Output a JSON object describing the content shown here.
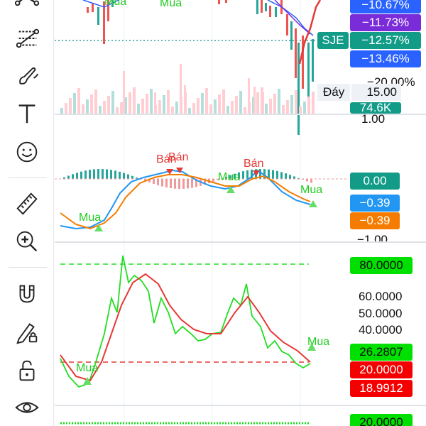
{
  "toolbar": {
    "tools": [
      {
        "name": "trend-line-tool-icon",
        "top": -6
      },
      {
        "name": "pitchfork-tool-icon",
        "top": 34
      },
      {
        "name": "brush-tool-icon",
        "top": 88
      },
      {
        "name": "text-tool-icon",
        "top": 140
      },
      {
        "name": "emoji-tool-icon",
        "top": 192
      },
      {
        "name": "ruler-tool-icon",
        "top": 264
      },
      {
        "name": "zoom-in-tool-icon",
        "top": 318
      },
      {
        "name": "magnet-tool-icon",
        "top": 392
      },
      {
        "name": "lock-drawing-tool-icon",
        "top": 446
      },
      {
        "name": "unlock-icon",
        "top": 500
      },
      {
        "name": "visibility-eye-icon",
        "top": 552
      }
    ]
  },
  "price_pane": {
    "tags": {
      "ma1": "−10.67%",
      "ma2": "−11.73%",
      "current": "−12.57%",
      "ma3": "−13.46%"
    },
    "symbol": "SJE",
    "axis_value": "−20.00%",
    "day_label": "Đáy",
    "price_box": "15.00",
    "volume_tag": "74.6K",
    "signals": [
      "Mua",
      "Mua"
    ]
  },
  "macd_pane": {
    "top_axis": "1.00",
    "bottom_axis": "−1.00",
    "tags": {
      "hist": "0.00",
      "macd": "−0.39",
      "signal": "−0.39"
    },
    "signals": {
      "sell1": "Bán",
      "sell2": "Bán",
      "buy_mid": "Mua",
      "sell3": "Bán",
      "buy_right": "Mua",
      "buy_left": "Mua"
    }
  },
  "stoch_pane": {
    "axis": [
      "60.0000",
      "50.0000",
      "40.0000"
    ],
    "tags": {
      "upper": "80.0000",
      "k": "26.2807",
      "lower": "20.0000",
      "d": "18.9912"
    },
    "signals": {
      "buy_left": "Mua",
      "buy_right": "Mua"
    }
  },
  "bottom_pane": {
    "tag": "20.0000"
  },
  "colors": {
    "stoch_k": "#22dd22",
    "stoch_d": "#e53935",
    "macd_line": "#2196f3",
    "signal_line": "#f57c00",
    "up": "#26a69a",
    "down": "#ef5350"
  }
}
